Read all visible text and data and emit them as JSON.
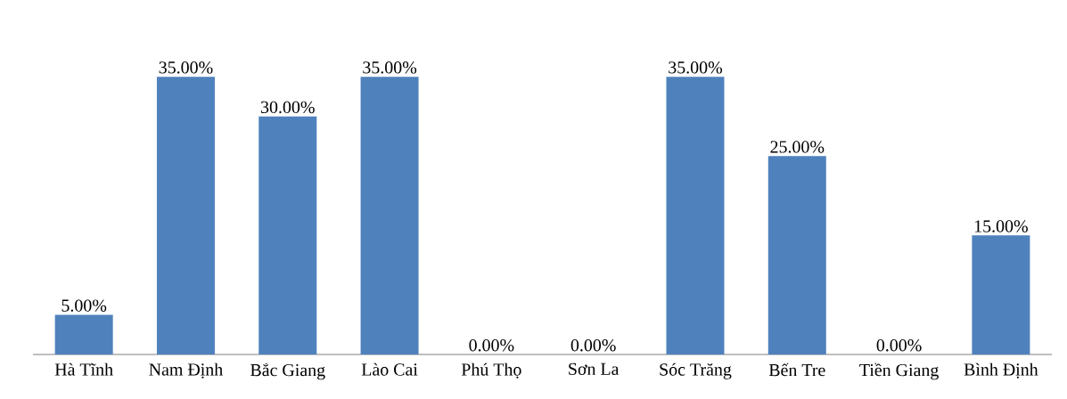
{
  "chart_data": {
    "type": "bar",
    "categories": [
      "Hà Tĩnh",
      "Nam Định",
      "Bắc Giang",
      "Lào Cai",
      "Phú Thọ",
      "Sơn La",
      "Sóc Trăng",
      "Bến Tre",
      "Tiền Giang",
      "Bình Định"
    ],
    "values": [
      5,
      35,
      30,
      35,
      0,
      0,
      35,
      25,
      0,
      15
    ],
    "value_labels": [
      "5.00%",
      "35.00%",
      "30.00%",
      "35.00%",
      "0.00%",
      "0.00%",
      "35.00%",
      "25.00%",
      "0.00%",
      "15.00%"
    ],
    "color": "#4f81bd",
    "grid": false
  }
}
